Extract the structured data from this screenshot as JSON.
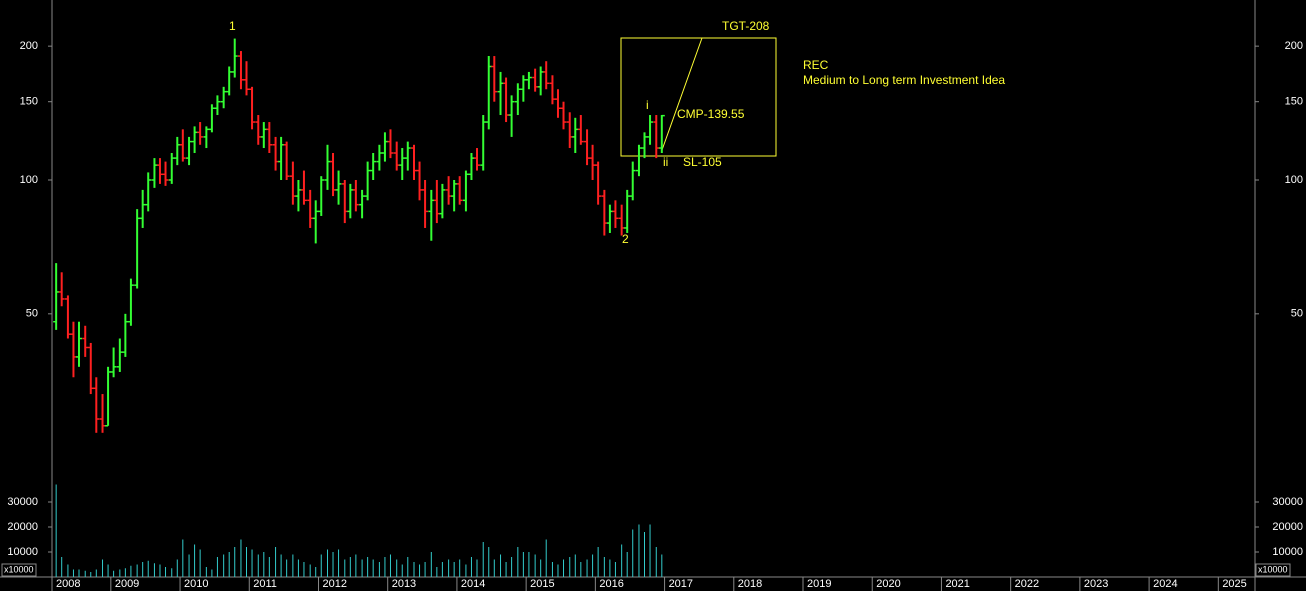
{
  "chart_data": {
    "type": "ohlc",
    "title": "REC",
    "subtitle": "Medium to Long term Investment Idea",
    "annotations": [
      "1",
      "2",
      "i",
      "ii",
      "TGT-208",
      "CMP-139.55",
      "SL-105"
    ],
    "volume_unit": "x10000",
    "log_scale": true,
    "up_color": "#33ff33",
    "down_color": "#ff2020",
    "volume_color": "#33cccc",
    "xlim": [
      2008.15,
      2025.53
    ],
    "xticks": [
      2008,
      2009,
      2010,
      2011,
      2012,
      2013,
      2014,
      2015,
      2016,
      2017,
      2018,
      2019,
      2020,
      2021,
      2022,
      2023,
      2024,
      2025
    ],
    "ylim": [
      21.7,
      254
    ],
    "yticks": [
      50,
      100,
      150,
      200
    ],
    "y2lim": [
      0,
      40000
    ],
    "y2ticks": [
      10000,
      20000,
      30000
    ],
    "x": [
      2008.21,
      2008.29,
      2008.38,
      2008.46,
      2008.54,
      2008.63,
      2008.71,
      2008.79,
      2008.88,
      2008.96,
      2009.04,
      2009.13,
      2009.21,
      2009.29,
      2009.38,
      2009.46,
      2009.54,
      2009.63,
      2009.71,
      2009.79,
      2009.88,
      2009.96,
      2010.04,
      2010.13,
      2010.21,
      2010.29,
      2010.38,
      2010.46,
      2010.54,
      2010.63,
      2010.71,
      2010.79,
      2010.88,
      2010.96,
      2011.04,
      2011.13,
      2011.21,
      2011.29,
      2011.38,
      2011.46,
      2011.54,
      2011.63,
      2011.71,
      2011.79,
      2011.88,
      2011.96,
      2012.04,
      2012.13,
      2012.21,
      2012.29,
      2012.38,
      2012.46,
      2012.54,
      2012.63,
      2012.71,
      2012.79,
      2012.88,
      2012.96,
      2013.04,
      2013.13,
      2013.21,
      2013.29,
      2013.38,
      2013.46,
      2013.54,
      2013.63,
      2013.71,
      2013.79,
      2013.88,
      2013.96,
      2014.04,
      2014.13,
      2014.21,
      2014.29,
      2014.38,
      2014.46,
      2014.54,
      2014.63,
      2014.71,
      2014.79,
      2014.88,
      2014.96,
      2015.04,
      2015.13,
      2015.21,
      2015.29,
      2015.38,
      2015.46,
      2015.54,
      2015.63,
      2015.71,
      2015.79,
      2015.88,
      2015.96,
      2016.04,
      2016.13,
      2016.21,
      2016.29,
      2016.38,
      2016.46,
      2016.54,
      2016.63,
      2016.71,
      2016.79,
      2016.88,
      2016.96
    ],
    "ohlc": [
      [
        48,
        65,
        46,
        56
      ],
      [
        56,
        62,
        52,
        54
      ],
      [
        54,
        55,
        44,
        45
      ],
      [
        45,
        48,
        36,
        40
      ],
      [
        40,
        48,
        38,
        44
      ],
      [
        44,
        47,
        40,
        42
      ],
      [
        42,
        43,
        33,
        34
      ],
      [
        34,
        36,
        27,
        29
      ],
      [
        29,
        33,
        27,
        28
      ],
      [
        28,
        38,
        28,
        37
      ],
      [
        37,
        42,
        36,
        38
      ],
      [
        38,
        44,
        37,
        41
      ],
      [
        41,
        50,
        40,
        48
      ],
      [
        48,
        60,
        47,
        58
      ],
      [
        58,
        86,
        57,
        82
      ],
      [
        82,
        95,
        78,
        88
      ],
      [
        88,
        104,
        85,
        100
      ],
      [
        100,
        112,
        96,
        108
      ],
      [
        108,
        112,
        98,
        103
      ],
      [
        103,
        110,
        97,
        100
      ],
      [
        100,
        115,
        98,
        112
      ],
      [
        112,
        125,
        108,
        120
      ],
      [
        120,
        130,
        110,
        112
      ],
      [
        112,
        125,
        108,
        122
      ],
      [
        122,
        132,
        115,
        128
      ],
      [
        128,
        135,
        120,
        125
      ],
      [
        125,
        132,
        118,
        130
      ],
      [
        130,
        148,
        128,
        145
      ],
      [
        145,
        155,
        140,
        150
      ],
      [
        150,
        162,
        145,
        158
      ],
      [
        158,
        180,
        155,
        175
      ],
      [
        175,
        208,
        170,
        190
      ],
      [
        190,
        195,
        160,
        168
      ],
      [
        168,
        185,
        155,
        160
      ],
      [
        160,
        162,
        130,
        135
      ],
      [
        135,
        140,
        120,
        125
      ],
      [
        125,
        135,
        118,
        130
      ],
      [
        130,
        135,
        115,
        120
      ],
      [
        120,
        125,
        105,
        110
      ],
      [
        110,
        125,
        100,
        120
      ],
      [
        120,
        122,
        100,
        102
      ],
      [
        102,
        110,
        88,
        92
      ],
      [
        92,
        100,
        85,
        95
      ],
      [
        95,
        105,
        88,
        90
      ],
      [
        90,
        95,
        78,
        82
      ],
      [
        82,
        90,
        72,
        85
      ],
      [
        85,
        102,
        83,
        100
      ],
      [
        100,
        120,
        95,
        110
      ],
      [
        110,
        115,
        92,
        95
      ],
      [
        95,
        105,
        88,
        98
      ],
      [
        98,
        100,
        80,
        85
      ],
      [
        85,
        98,
        82,
        95
      ],
      [
        95,
        100,
        85,
        88
      ],
      [
        88,
        95,
        82,
        92
      ],
      [
        92,
        110,
        90,
        105
      ],
      [
        105,
        115,
        100,
        110
      ],
      [
        110,
        120,
        105,
        115
      ],
      [
        115,
        128,
        110,
        122
      ],
      [
        122,
        130,
        112,
        115
      ],
      [
        115,
        122,
        105,
        108
      ],
      [
        108,
        118,
        100,
        112
      ],
      [
        112,
        122,
        105,
        118
      ],
      [
        118,
        120,
        100,
        105
      ],
      [
        105,
        110,
        90,
        95
      ],
      [
        95,
        100,
        78,
        85
      ],
      [
        85,
        95,
        73,
        90
      ],
      [
        90,
        100,
        80,
        84
      ],
      [
        84,
        98,
        82,
        95
      ],
      [
        95,
        102,
        88,
        92
      ],
      [
        92,
        100,
        85,
        98
      ],
      [
        98,
        102,
        88,
        90
      ],
      [
        90,
        105,
        85,
        103
      ],
      [
        103,
        115,
        100,
        112
      ],
      [
        112,
        118,
        105,
        108
      ],
      [
        108,
        140,
        105,
        135
      ],
      [
        135,
        190,
        130,
        180
      ],
      [
        180,
        190,
        150,
        158
      ],
      [
        158,
        175,
        140,
        165
      ],
      [
        165,
        170,
        135,
        140
      ],
      [
        140,
        155,
        125,
        150
      ],
      [
        150,
        165,
        140,
        160
      ],
      [
        160,
        172,
        150,
        168
      ],
      [
        168,
        175,
        160,
        170
      ],
      [
        170,
        178,
        158,
        162
      ],
      [
        162,
        180,
        155,
        175
      ],
      [
        175,
        185,
        160,
        165
      ],
      [
        165,
        172,
        148,
        152
      ],
      [
        152,
        160,
        138,
        145
      ],
      [
        145,
        150,
        130,
        135
      ],
      [
        135,
        142,
        118,
        125
      ],
      [
        125,
        138,
        115,
        130
      ],
      [
        130,
        140,
        120,
        122
      ],
      [
        122,
        130,
        108,
        112
      ],
      [
        112,
        120,
        100,
        108
      ],
      [
        108,
        110,
        88,
        92
      ],
      [
        92,
        95,
        75,
        80
      ],
      [
        80,
        88,
        76,
        85
      ],
      [
        85,
        90,
        78,
        82
      ],
      [
        82,
        88,
        75,
        78
      ],
      [
        78,
        95,
        76,
        92
      ],
      [
        92,
        110,
        90,
        105
      ],
      [
        105,
        120,
        102,
        118
      ],
      [
        118,
        128,
        112,
        125
      ],
      [
        125,
        140,
        120,
        135
      ],
      [
        135,
        140,
        112,
        118
      ],
      [
        118,
        140,
        115,
        139.55
      ]
    ],
    "volume": [
      37000,
      8000,
      5000,
      3000,
      3000,
      2500,
      2000,
      3000,
      7000,
      5000,
      2500,
      3000,
      3500,
      4500,
      5000,
      6000,
      6500,
      5500,
      5000,
      4000,
      3500,
      7000,
      15000,
      9000,
      13000,
      11000,
      4000,
      3000,
      8000,
      9000,
      10000,
      12000,
      15000,
      12000,
      11000,
      9000,
      10000,
      8000,
      12000,
      9000,
      7000,
      9000,
      7000,
      6000,
      5000,
      4000,
      9000,
      11000,
      10000,
      11000,
      7000,
      8000,
      9000,
      7000,
      8000,
      7000,
      6000,
      8000,
      9000,
      7000,
      5000,
      8000,
      6000,
      5000,
      6000,
      10000,
      4000,
      6000,
      7000,
      6000,
      7000,
      5000,
      8000,
      7000,
      14000,
      12000,
      7000,
      9000,
      6000,
      8000,
      12000,
      10000,
      10000,
      9000,
      7000,
      15000,
      6000,
      5000,
      7000,
      8000,
      9000,
      6000,
      7000,
      9000,
      12000,
      8000,
      7000,
      6000,
      13000,
      10000,
      19000,
      21000,
      18000,
      21000,
      12000,
      9000
    ]
  }
}
